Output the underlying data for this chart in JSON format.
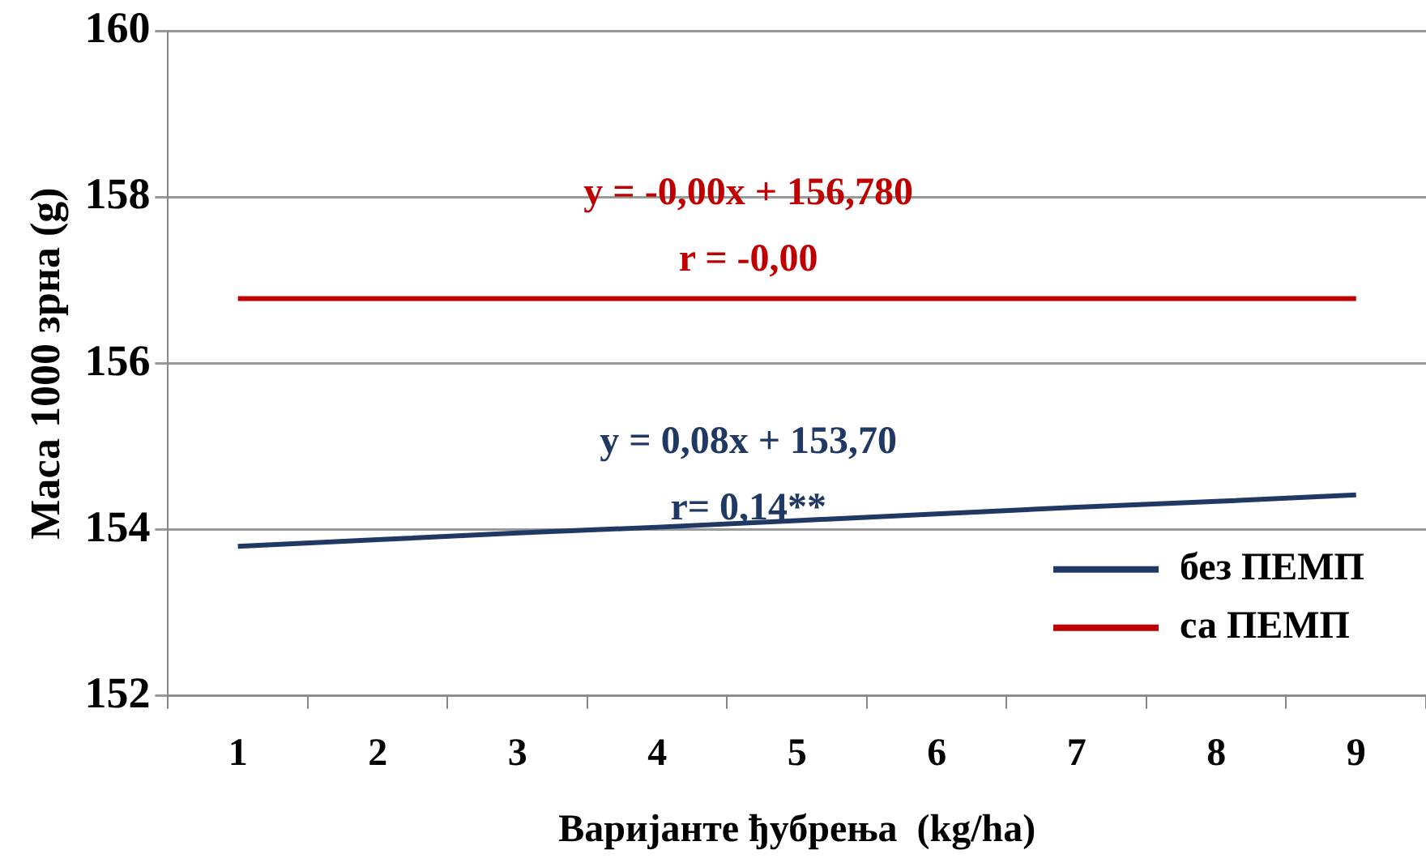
{
  "chart_data": {
    "type": "line",
    "xlabel": "Варијанте ђубрења  (kg/ha)",
    "ylabel": "Маса 1000 зрна (g)",
    "categories": [
      "1",
      "2",
      "3",
      "4",
      "5",
      "6",
      "7",
      "8",
      "9"
    ],
    "series": [
      {
        "name": "без ПЕМП",
        "color": "#1f3864",
        "values": [
          153.8,
          153.88,
          153.96,
          154.03,
          154.11,
          154.19,
          154.27,
          154.34,
          154.42
        ]
      },
      {
        "name": "са ПЕМП",
        "color": "#c00000",
        "values": [
          156.78,
          156.78,
          156.78,
          156.78,
          156.78,
          156.78,
          156.78,
          156.78,
          156.78
        ]
      }
    ],
    "ylim": [
      152,
      160
    ],
    "yticks": [
      152,
      154,
      156,
      158,
      160
    ],
    "grid": "y",
    "legend": "bottom right",
    "marker": "none",
    "line_style": "solid",
    "annotations": [
      "y = 0,08x + 153,70",
      "r= 0,14**",
      "y = -0,00x + 156,780",
      "r = -0,00"
    ]
  }
}
